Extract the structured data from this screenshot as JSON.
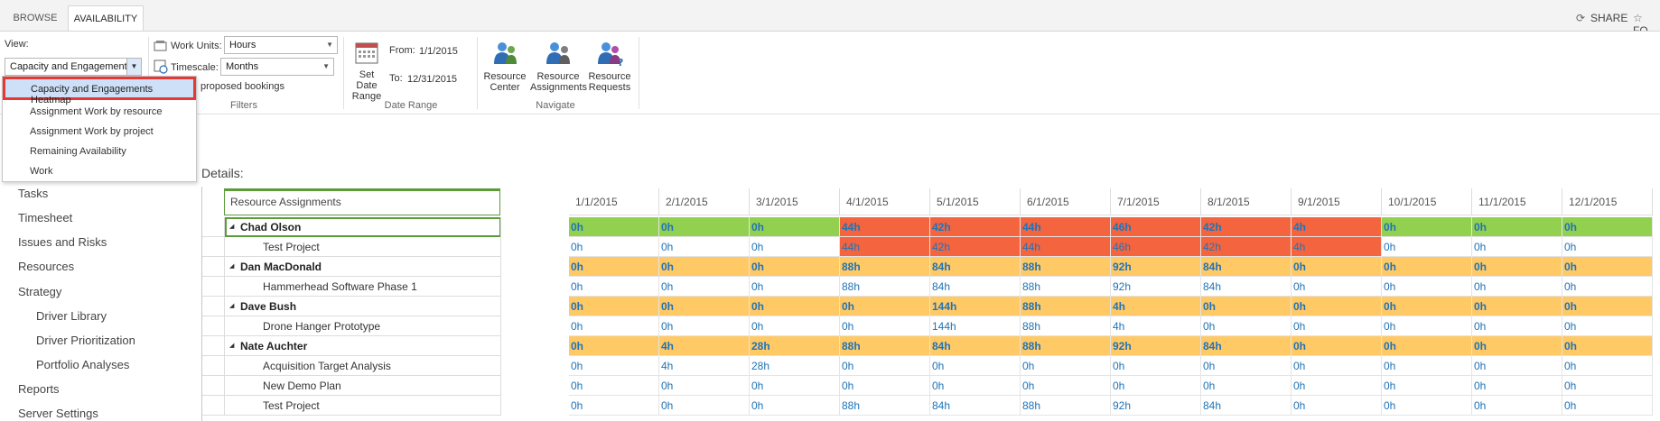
{
  "ribbon_tabs": [
    "BROWSE",
    "AVAILABILITY"
  ],
  "top_actions": {
    "share": "SHARE",
    "follow": "FO"
  },
  "view": {
    "label": "View:",
    "selected": "Capacity and Engagements"
  },
  "filters": {
    "work_units_label": "Work Units:",
    "work_units_value": "Hours",
    "timescale_label": "Timescale:",
    "timescale_value": "Months",
    "proposed_label": "proposed bookings",
    "group_label": "Filters"
  },
  "date_range": {
    "button_label_1": "Set Date",
    "button_label_2": "Range",
    "from_label": "From:",
    "from_value": "1/1/2015",
    "to_label": "To:",
    "to_value": "12/31/2015",
    "group_label": "Date Range"
  },
  "navigate": {
    "resource_center_1": "Resource",
    "resource_center_2": "Center",
    "resource_assignments_1": "Resource",
    "resource_assignments_2": "Assignments",
    "resource_requests_1": "Resource",
    "resource_requests_2": "Requests",
    "group_label": "Navigate"
  },
  "dropdown_items": [
    "Capacity and Engagements Heatmap",
    "Assignment Work by resource",
    "Assignment Work by project",
    "Remaining Availability",
    "Work"
  ],
  "left_nav": [
    "Tasks",
    "Timesheet",
    "Issues and Risks",
    "Resources",
    "Strategy",
    "Driver Library",
    "Driver Prioritization",
    "Portfolio Analyses",
    "Reports",
    "Server Settings"
  ],
  "details_label": "Details:",
  "grid": {
    "left_header": "Resource Assignments",
    "months": [
      "1/1/2015",
      "2/1/2015",
      "3/1/2015",
      "4/1/2015",
      "5/1/2015",
      "6/1/2015",
      "7/1/2015",
      "8/1/2015",
      "9/1/2015",
      "10/1/2015",
      "11/1/2015",
      "12/1/2015"
    ],
    "rows": [
      {
        "name": "Chad Olson",
        "level": 0,
        "values": [
          "0h",
          "0h",
          "0h",
          "44h",
          "42h",
          "44h",
          "46h",
          "42h",
          "4h",
          "0h",
          "0h",
          "0h"
        ]
      },
      {
        "name": "Test Project",
        "level": 1,
        "values": [
          "0h",
          "0h",
          "0h",
          "44h",
          "42h",
          "44h",
          "46h",
          "42h",
          "4h",
          "0h",
          "0h",
          "0h"
        ]
      },
      {
        "name": "Dan MacDonald",
        "level": 0,
        "values": [
          "0h",
          "0h",
          "0h",
          "88h",
          "84h",
          "88h",
          "92h",
          "84h",
          "0h",
          "0h",
          "0h",
          "0h"
        ]
      },
      {
        "name": "Hammerhead Software Phase 1",
        "level": 1,
        "values": [
          "0h",
          "0h",
          "0h",
          "88h",
          "84h",
          "88h",
          "92h",
          "84h",
          "0h",
          "0h",
          "0h",
          "0h"
        ]
      },
      {
        "name": "Dave Bush",
        "level": 0,
        "values": [
          "0h",
          "0h",
          "0h",
          "0h",
          "144h",
          "88h",
          "4h",
          "0h",
          "0h",
          "0h",
          "0h",
          "0h"
        ]
      },
      {
        "name": "Drone Hanger Prototype",
        "level": 1,
        "values": [
          "0h",
          "0h",
          "0h",
          "0h",
          "144h",
          "88h",
          "4h",
          "0h",
          "0h",
          "0h",
          "0h",
          "0h"
        ]
      },
      {
        "name": "Nate Auchter",
        "level": 0,
        "values": [
          "0h",
          "4h",
          "28h",
          "88h",
          "84h",
          "88h",
          "92h",
          "84h",
          "0h",
          "0h",
          "0h",
          "0h"
        ]
      },
      {
        "name": "Acquisition Target Analysis",
        "level": 1,
        "values": [
          "0h",
          "4h",
          "28h",
          "0h",
          "0h",
          "0h",
          "0h",
          "0h",
          "0h",
          "0h",
          "0h",
          "0h"
        ]
      },
      {
        "name": "New Demo Plan",
        "level": 1,
        "values": [
          "0h",
          "0h",
          "0h",
          "0h",
          "0h",
          "0h",
          "0h",
          "0h",
          "0h",
          "0h",
          "0h",
          "0h"
        ]
      },
      {
        "name": "Test Project",
        "level": 1,
        "values": [
          "0h",
          "0h",
          "0h",
          "88h",
          "84h",
          "88h",
          "92h",
          "84h",
          "0h",
          "0h",
          "0h",
          "0h"
        ]
      }
    ],
    "heat_colors": {
      "green": "#92d050",
      "orange": "#ffc966",
      "red": "#f4643f"
    }
  }
}
